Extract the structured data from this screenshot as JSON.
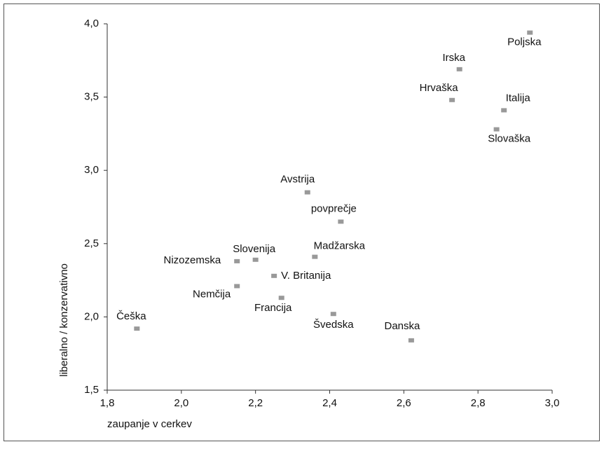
{
  "chart_data": {
    "type": "scatter",
    "xlabel": "zaupanje v cerkev",
    "ylabel": "liberalno / konzervativno",
    "labels": [
      "Poljska",
      "Irska",
      "Hrvaška",
      "Italija",
      "Slovaška",
      "Avstrija",
      "povprečje",
      "Madžarska",
      "Slovenija",
      "Nizozemska",
      "V. Britanija",
      "Nemčija",
      "Francija",
      "Švedska",
      "Danska",
      "Češka"
    ],
    "x": [
      2.94,
      2.75,
      2.73,
      2.87,
      2.85,
      2.34,
      2.43,
      2.36,
      2.2,
      2.15,
      2.25,
      2.15,
      2.27,
      2.41,
      2.62,
      1.88
    ],
    "values": [
      3.94,
      3.69,
      3.48,
      3.41,
      3.28,
      2.85,
      2.65,
      2.41,
      2.39,
      2.38,
      2.28,
      2.21,
      2.13,
      2.02,
      1.84,
      1.92
    ],
    "color": "#999999",
    "xlim": [
      1.8,
      3.0
    ],
    "xticks": [
      {
        "value": 1.8,
        "label": "1,8"
      },
      {
        "value": 2.0,
        "label": "2,0"
      },
      {
        "value": 2.2,
        "label": "2,2"
      },
      {
        "value": 2.4,
        "label": "2,4"
      },
      {
        "value": 2.6,
        "label": "2,6"
      },
      {
        "value": 2.8,
        "label": "2,8"
      },
      {
        "value": 3.0,
        "label": "3,0"
      }
    ],
    "ylim": [
      1.5,
      4.0
    ],
    "yticks": [
      {
        "value": 1.5,
        "label": "1,5"
      },
      {
        "value": 2.0,
        "label": "2,0"
      },
      {
        "value": 2.5,
        "label": "2,5"
      },
      {
        "value": 3.0,
        "label": "3,0"
      },
      {
        "value": 3.5,
        "label": "3,5"
      },
      {
        "value": 4.0,
        "label": "4,0"
      }
    ]
  }
}
